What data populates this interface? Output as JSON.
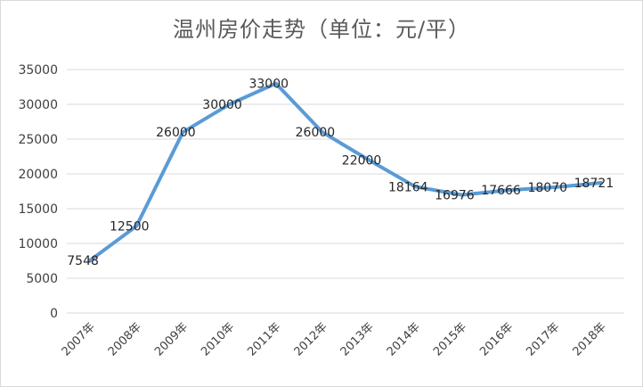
{
  "chart_data": {
    "type": "line",
    "title": "温州房价走势（单位：元/平）",
    "xlabel": "",
    "ylabel": "",
    "categories": [
      "2007年",
      "2008年",
      "2009年",
      "2010年",
      "2011年",
      "2012年",
      "2013年",
      "2014年",
      "2015年",
      "2016年",
      "2017年",
      "2018年"
    ],
    "series": [
      {
        "values": [
          7548,
          12500,
          26000,
          30000,
          33000,
          26000,
          22000,
          18164,
          16976,
          17666,
          18070,
          18721
        ],
        "color": "#5b9bd5"
      }
    ],
    "ylim": [
      0,
      35000
    ],
    "yticks": [
      0,
      5000,
      10000,
      15000,
      20000,
      25000,
      30000,
      35000
    ],
    "grid": true,
    "legend": "none",
    "data_labels": true
  }
}
